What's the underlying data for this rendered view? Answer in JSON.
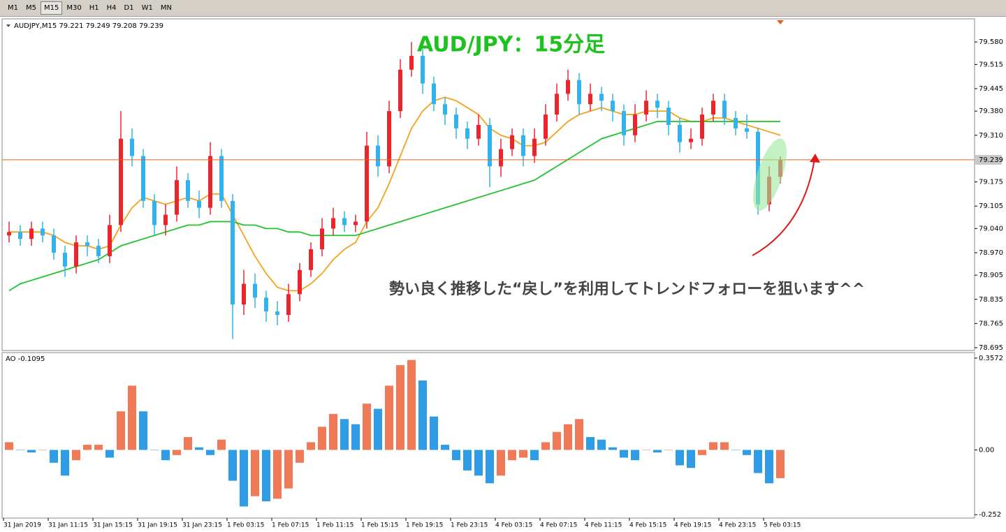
{
  "toolbar": {
    "timeframes": [
      "M1",
      "M5",
      "M15",
      "M30",
      "H1",
      "H4",
      "D1",
      "W1",
      "MN"
    ],
    "active_index": 2
  },
  "chart_data": [
    {
      "type": "candlestick",
      "title": "AUD/JPY：15分足",
      "symbol_info": "AUDJPY,M15  79.221 79.249 79.208 79.239",
      "annotation": "勢い良く推移した“戻し”を利用してトレンドフォローを狙います^^",
      "categories": [
        "31 Jan 2019",
        null,
        null,
        null,
        "31 Jan 11:15",
        null,
        null,
        null,
        "31 Jan 15:15",
        null,
        null,
        null,
        "31 Jan 19:15",
        null,
        null,
        null,
        "31 Jan 23:15",
        null,
        null,
        null,
        "1 Feb 03:15",
        null,
        null,
        null,
        "1 Feb 07:15",
        null,
        null,
        null,
        "1 Feb 11:15",
        null,
        null,
        null,
        "1 Feb 15:15",
        null,
        null,
        null,
        "1 Feb 19:15",
        null,
        null,
        null,
        "1 Feb 23:15",
        null,
        null,
        null,
        "4 Feb 03:15",
        null,
        null,
        null,
        "4 Feb 07:15",
        null,
        null,
        null,
        "4 Feb 11:15",
        null,
        null,
        null,
        "4 Feb 15:15",
        null,
        null,
        null,
        "4 Feb 19:15",
        null,
        null,
        null,
        "4 Feb 23:15",
        null,
        null,
        null,
        "5 Feb 03:15",
        null
      ],
      "open": [
        79.02,
        79.03,
        79.01,
        79.04,
        79.02,
        78.97,
        78.93,
        79.0,
        78.99,
        78.96,
        79.05,
        79.3,
        79.25,
        79.12,
        79.05,
        79.08,
        79.18,
        79.12,
        79.1,
        79.25,
        79.12,
        78.82,
        78.88,
        78.84,
        78.8,
        78.79,
        78.85,
        78.92,
        78.98,
        79.04,
        79.07,
        79.05,
        79.06,
        79.28,
        79.22,
        79.38,
        79.5,
        79.54,
        79.46,
        79.4,
        79.37,
        79.33,
        79.3,
        79.34,
        79.22,
        79.27,
        79.31,
        79.25,
        79.3,
        79.37,
        79.43,
        79.47,
        79.4,
        79.43,
        79.41,
        79.38,
        79.31,
        79.37,
        79.41,
        79.39,
        79.34,
        79.29,
        79.3,
        79.37,
        79.41,
        79.36,
        79.33,
        79.32,
        79.11,
        79.19
      ],
      "high": [
        79.06,
        79.05,
        79.06,
        79.06,
        79.04,
        78.99,
        79.02,
        79.02,
        79.01,
        79.08,
        79.38,
        79.33,
        79.27,
        79.14,
        79.11,
        79.22,
        79.2,
        79.15,
        79.29,
        79.27,
        79.14,
        78.92,
        78.91,
        78.86,
        78.83,
        78.88,
        78.94,
        79.0,
        79.07,
        79.1,
        79.09,
        79.08,
        79.32,
        79.31,
        79.41,
        79.53,
        79.58,
        79.56,
        79.48,
        79.42,
        79.39,
        79.35,
        79.37,
        79.36,
        79.3,
        79.33,
        79.33,
        79.33,
        79.4,
        79.46,
        79.5,
        79.49,
        79.46,
        79.45,
        79.43,
        79.4,
        79.4,
        79.44,
        79.43,
        79.41,
        79.36,
        79.33,
        79.39,
        79.43,
        79.43,
        79.38,
        79.37,
        79.33,
        79.22,
        79.249
      ],
      "low": [
        79.0,
        78.99,
        78.99,
        79.0,
        78.95,
        78.9,
        78.91,
        78.96,
        78.94,
        78.94,
        79.03,
        79.22,
        79.1,
        79.02,
        79.02,
        79.06,
        79.1,
        79.07,
        79.08,
        79.1,
        78.72,
        78.79,
        78.81,
        78.77,
        78.76,
        78.77,
        78.83,
        78.9,
        78.96,
        79.02,
        79.03,
        79.03,
        79.04,
        79.19,
        79.2,
        79.36,
        79.48,
        79.43,
        79.38,
        79.34,
        79.3,
        79.27,
        79.28,
        79.16,
        79.19,
        79.25,
        79.22,
        79.23,
        79.28,
        79.35,
        79.41,
        79.37,
        79.38,
        79.38,
        79.35,
        79.28,
        79.29,
        79.35,
        79.36,
        79.31,
        79.26,
        79.27,
        79.28,
        79.35,
        79.34,
        79.31,
        79.3,
        79.08,
        79.09,
        79.17
      ],
      "close": [
        79.03,
        79.01,
        79.04,
        79.02,
        78.97,
        78.93,
        79.0,
        78.99,
        78.96,
        79.05,
        79.3,
        79.25,
        79.12,
        79.05,
        79.08,
        79.18,
        79.12,
        79.1,
        79.25,
        79.12,
        78.82,
        78.88,
        78.84,
        78.8,
        78.79,
        78.85,
        78.92,
        78.98,
        79.04,
        79.07,
        79.05,
        79.06,
        79.28,
        79.22,
        79.38,
        79.5,
        79.54,
        79.46,
        79.4,
        79.37,
        79.33,
        79.3,
        79.34,
        79.22,
        79.27,
        79.31,
        79.25,
        79.3,
        79.37,
        79.43,
        79.47,
        79.4,
        79.43,
        79.41,
        79.38,
        79.31,
        79.37,
        79.41,
        79.39,
        79.34,
        79.29,
        79.3,
        79.37,
        79.41,
        79.36,
        79.33,
        79.32,
        79.11,
        79.19,
        79.239
      ],
      "up_color": "#e8262b",
      "down_color": "#34b3ea",
      "moving_averages": [
        {
          "color": "#f5a21a",
          "values": [
            79.03,
            79.03,
            79.03,
            79.03,
            79.02,
            79.0,
            78.99,
            78.99,
            78.98,
            78.99,
            79.05,
            79.1,
            79.13,
            79.12,
            79.11,
            79.12,
            79.13,
            79.12,
            79.14,
            79.14,
            79.08,
            79.02,
            78.96,
            78.91,
            78.87,
            78.86,
            78.86,
            78.88,
            78.91,
            78.95,
            78.98,
            79.0,
            79.06,
            79.1,
            79.17,
            79.25,
            79.33,
            79.38,
            79.41,
            79.42,
            79.41,
            79.39,
            79.37,
            79.33,
            79.31,
            79.3,
            79.28,
            79.28,
            79.29,
            79.32,
            79.35,
            79.37,
            79.38,
            79.39,
            79.38,
            79.37,
            79.37,
            79.38,
            79.38,
            79.38,
            79.36,
            79.35,
            79.35,
            79.36,
            79.36,
            79.35,
            79.34,
            79.33,
            79.32,
            79.31
          ]
        },
        {
          "color": "#1fc42c",
          "values": [
            78.86,
            78.88,
            78.89,
            78.9,
            78.91,
            78.92,
            78.93,
            78.94,
            78.95,
            78.97,
            78.99,
            79.0,
            79.01,
            79.02,
            79.03,
            79.04,
            79.05,
            79.05,
            79.06,
            79.06,
            79.06,
            79.05,
            79.05,
            79.04,
            79.04,
            79.03,
            79.03,
            79.02,
            79.02,
            79.02,
            79.02,
            79.02,
            79.03,
            79.04,
            79.05,
            79.06,
            79.07,
            79.08,
            79.09,
            79.1,
            79.11,
            79.12,
            79.13,
            79.14,
            79.15,
            79.16,
            79.17,
            79.18,
            79.2,
            79.22,
            79.24,
            79.26,
            79.28,
            79.3,
            79.31,
            79.32,
            79.33,
            79.34,
            79.35,
            79.35,
            79.35,
            79.35,
            79.35,
            79.35,
            79.35,
            79.35,
            79.35,
            79.35,
            79.35,
            79.35
          ]
        }
      ],
      "current_price": 79.239,
      "current_price_color": "#e0631c",
      "ylim": [
        78.687,
        79.641
      ],
      "yticks": [
        {
          "value": 79.58,
          "label": "79.580"
        },
        79.515,
        79.445,
        {
          "value": 79.38,
          "label": "79.380"
        },
        {
          "value": 79.31,
          "label": "79.310"
        },
        79.175,
        79.105,
        {
          "value": 79.04,
          "label": "79.040"
        },
        {
          "value": 78.97,
          "label": "78.970"
        },
        78.905,
        78.835,
        78.765,
        78.695
      ]
    },
    {
      "type": "bar",
      "title": "AO -0.1095",
      "values": [
        0.03,
        0.0,
        -0.01,
        0.0,
        -0.05,
        -0.1,
        -0.04,
        0.02,
        0.02,
        -0.03,
        0.15,
        0.25,
        0.15,
        0.0,
        -0.04,
        -0.02,
        0.05,
        0.01,
        -0.02,
        0.04,
        -0.12,
        -0.22,
        -0.18,
        -0.2,
        -0.19,
        -0.15,
        -0.05,
        0.03,
        0.09,
        0.14,
        0.12,
        0.1,
        0.18,
        0.16,
        0.25,
        0.33,
        0.35,
        0.27,
        0.13,
        0.02,
        -0.04,
        -0.08,
        -0.1,
        -0.13,
        -0.1,
        -0.04,
        -0.03,
        -0.04,
        0.03,
        0.07,
        0.1,
        0.12,
        0.05,
        0.04,
        0.01,
        -0.03,
        -0.04,
        0.0,
        -0.01,
        0.0,
        -0.06,
        -0.07,
        -0.02,
        0.03,
        0.03,
        0.0,
        -0.02,
        -0.09,
        -0.13,
        -0.11
      ],
      "up_color": "#f07a58",
      "down_color": "#2f9ce6",
      "ylim": [
        -0.265,
        0.376
      ],
      "yticks": [
        0.3572,
        {
          "value": 0,
          "label": "0.00"
        },
        -0.252
      ]
    }
  ]
}
